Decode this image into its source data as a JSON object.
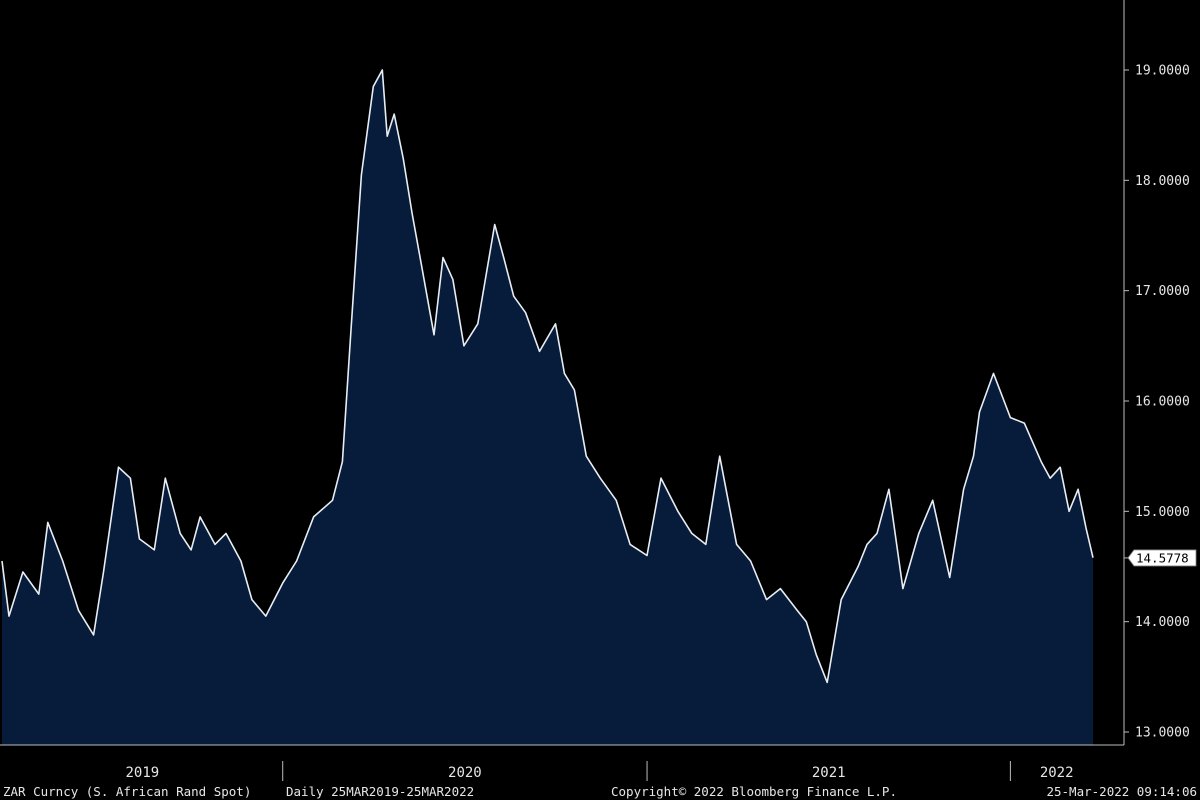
{
  "colors": {
    "background": "#000000",
    "area_fill": "#061c3a",
    "line": "#e8edf3",
    "axis": "#bdbdbd"
  },
  "footer": {
    "security": "ZAR Curncy (S. African Rand Spot)",
    "range": "Daily 25MAR2019-25MAR2022",
    "copyright": "Copyright© 2022 Bloomberg Finance L.P.",
    "timestamp": "25-Mar-2022 09:14:06"
  },
  "chart_data": {
    "type": "area",
    "title": "",
    "xlabel": "",
    "ylabel": "",
    "ylim": [
      13.0,
      19.0
    ],
    "y_ticks": [
      "13.0000",
      "14.0000",
      "15.0000",
      "16.0000",
      "17.0000",
      "18.0000",
      "19.0000"
    ],
    "y_tick_values": [
      13,
      14,
      15,
      16,
      17,
      18,
      19
    ],
    "year_labels": [
      "2019",
      "2020",
      "2021",
      "2022"
    ],
    "last_value": 14.5778,
    "last_value_label": "14.5778",
    "grid": false,
    "series": [
      {
        "x": [
          "2019-03-25",
          "2019-04-01",
          "2019-04-15",
          "2019-05-01",
          "2019-05-10",
          "2019-05-25",
          "2019-06-10",
          "2019-06-25",
          "2019-07-05",
          "2019-07-20",
          "2019-08-01",
          "2019-08-10",
          "2019-08-25",
          "2019-09-05",
          "2019-09-20",
          "2019-10-01",
          "2019-10-10",
          "2019-10-25",
          "2019-11-05",
          "2019-11-20",
          "2019-12-01",
          "2019-12-15",
          "2020-01-01",
          "2020-01-15",
          "2020-02-01",
          "2020-02-20",
          "2020-03-01",
          "2020-03-10",
          "2020-03-20",
          "2020-04-01",
          "2020-04-10",
          "2020-04-15",
          "2020-04-22",
          "2020-05-01",
          "2020-05-10",
          "2020-05-20",
          "2020-06-01",
          "2020-06-10",
          "2020-06-20",
          "2020-07-01",
          "2020-07-15",
          "2020-08-01",
          "2020-08-10",
          "2020-08-20",
          "2020-09-01",
          "2020-09-15",
          "2020-10-01",
          "2020-10-10",
          "2020-10-20",
          "2020-11-01",
          "2020-11-15",
          "2020-12-01",
          "2020-12-15",
          "2021-01-01",
          "2021-01-15",
          "2021-02-01",
          "2021-02-15",
          "2021-03-01",
          "2021-03-15",
          "2021-04-01",
          "2021-04-15",
          "2021-05-01",
          "2021-05-15",
          "2021-06-01",
          "2021-06-10",
          "2021-06-20",
          "2021-07-01",
          "2021-07-15",
          "2021-08-01",
          "2021-08-10",
          "2021-08-20",
          "2021-09-01",
          "2021-09-15",
          "2021-10-01",
          "2021-10-15",
          "2021-11-01",
          "2021-11-15",
          "2021-11-25",
          "2021-12-01",
          "2021-12-15",
          "2022-01-01",
          "2022-01-15",
          "2022-02-01",
          "2022-02-10",
          "2022-02-20",
          "2022-03-01",
          "2022-03-10",
          "2022-03-18",
          "2022-03-25"
        ],
        "values": [
          14.55,
          14.05,
          14.45,
          14.25,
          14.9,
          14.55,
          14.1,
          13.88,
          14.45,
          15.4,
          15.3,
          14.75,
          14.65,
          15.3,
          14.8,
          14.65,
          14.95,
          14.7,
          14.8,
          14.55,
          14.2,
          14.05,
          14.35,
          14.55,
          14.95,
          15.1,
          15.45,
          16.7,
          18.05,
          18.85,
          19.0,
          18.4,
          18.6,
          18.2,
          17.7,
          17.2,
          16.6,
          17.3,
          17.1,
          16.5,
          16.7,
          17.6,
          17.3,
          16.95,
          16.8,
          16.45,
          16.7,
          16.25,
          16.1,
          15.5,
          15.3,
          15.1,
          14.7,
          14.6,
          15.3,
          15.0,
          14.8,
          14.7,
          15.5,
          14.7,
          14.55,
          14.2,
          14.3,
          14.1,
          14.0,
          13.7,
          13.45,
          14.2,
          14.5,
          14.7,
          14.8,
          15.2,
          14.3,
          14.8,
          15.1,
          14.4,
          15.2,
          15.5,
          15.9,
          16.25,
          15.85,
          15.8,
          15.45,
          15.3,
          15.4,
          15.0,
          15.2,
          14.85,
          14.58
        ]
      }
    ]
  }
}
